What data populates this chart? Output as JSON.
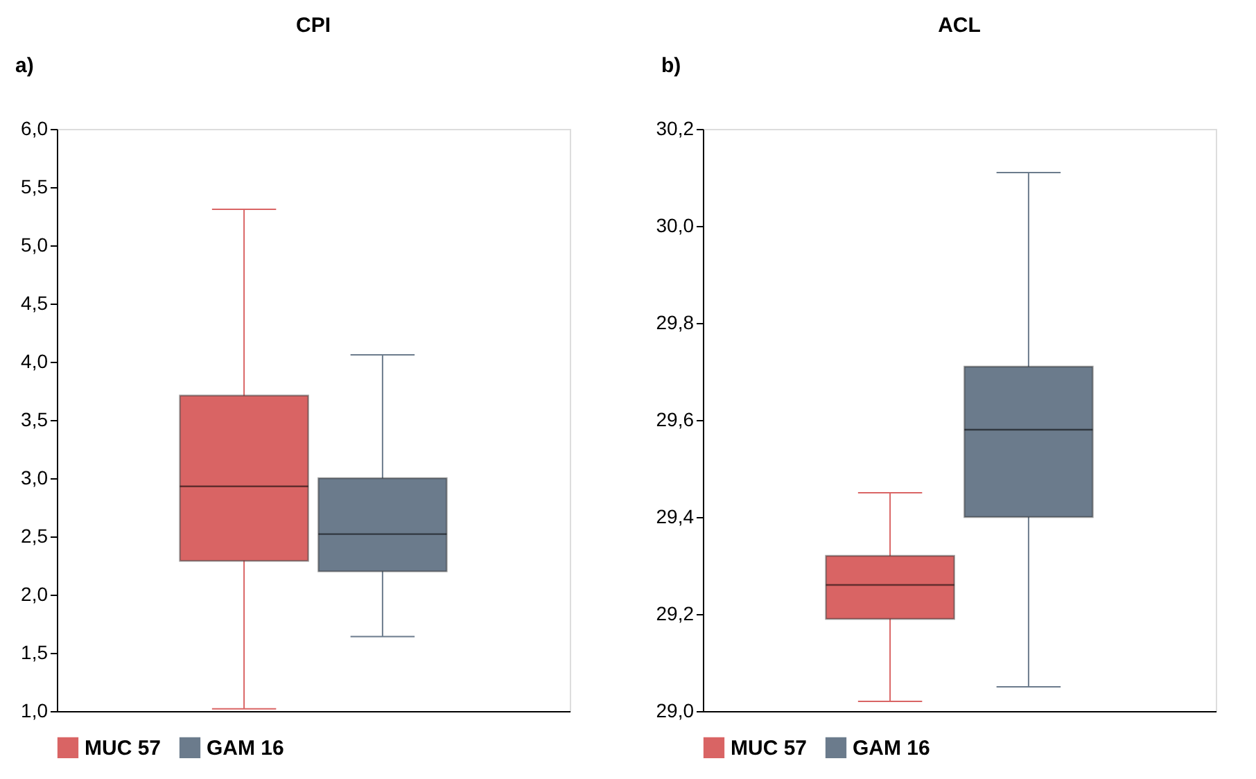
{
  "chart_data": [
    {
      "type": "box",
      "title": "CPI",
      "annotations": [
        "a)"
      ],
      "categories": [
        null
      ],
      "legend": "bottom",
      "grid": false,
      "ylim": [
        1.0,
        6.0
      ],
      "yticks": [
        {
          "value": 1.0,
          "label": "1,0"
        },
        {
          "value": 1.5,
          "label": "1,5"
        },
        {
          "value": 2.0,
          "label": "2,0"
        },
        {
          "value": 2.5,
          "label": "2,5"
        },
        {
          "value": 3.0,
          "label": "3,0"
        },
        {
          "value": 3.5,
          "label": "3,5"
        },
        {
          "value": 4.0,
          "label": "4,0"
        },
        {
          "value": 4.5,
          "label": "4,5"
        },
        {
          "value": 5.0,
          "label": "5,0"
        },
        {
          "value": 5.5,
          "label": "5,5"
        },
        {
          "value": 6.0,
          "label": "6,0"
        }
      ],
      "series": [
        {
          "name": "MUC 57",
          "color": "#d96464",
          "boxes": [
            {
              "low": 1.02,
              "q1": 2.29,
              "median": 2.93,
              "q3": 3.71,
              "high": 5.31
            }
          ]
        },
        {
          "name": "GAM 16",
          "color": "#6b7b8c",
          "boxes": [
            {
              "low": 1.64,
              "q1": 2.2,
              "median": 2.52,
              "q3": 3.0,
              "high": 4.06
            }
          ]
        }
      ]
    },
    {
      "type": "box",
      "title": "ACL",
      "annotations": [
        "b)"
      ],
      "categories": [
        null
      ],
      "legend": "bottom",
      "grid": false,
      "ylim": [
        29.0,
        30.2
      ],
      "yticks": [
        {
          "value": 29.0,
          "label": "29,0"
        },
        {
          "value": 29.2,
          "label": "29,2"
        },
        {
          "value": 29.4,
          "label": "29,4"
        },
        {
          "value": 29.6,
          "label": "29,6"
        },
        {
          "value": 29.8,
          "label": "29,8"
        },
        {
          "value": 30.0,
          "label": "30,0"
        },
        {
          "value": 30.2,
          "label": "30,2"
        }
      ],
      "series": [
        {
          "name": "MUC 57",
          "color": "#d96464",
          "boxes": [
            {
              "low": 29.02,
              "q1": 29.19,
              "median": 29.26,
              "q3": 29.32,
              "high": 29.45
            }
          ]
        },
        {
          "name": "GAM 16",
          "color": "#6b7b8c",
          "boxes": [
            {
              "low": 29.05,
              "q1": 29.4,
              "median": 29.58,
              "q3": 29.71,
              "high": 30.11
            }
          ]
        }
      ]
    }
  ]
}
